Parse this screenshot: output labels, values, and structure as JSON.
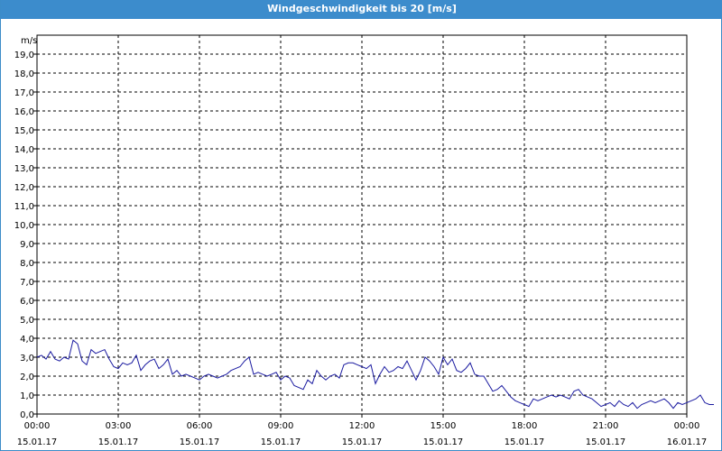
{
  "window": {
    "title": "Windgeschwindigkeit bis 20 [m/s]"
  },
  "chart_data": {
    "type": "line",
    "title": "",
    "ylabel": "m/s",
    "xlabel": "",
    "ylim": [
      0,
      20
    ],
    "xlim": [
      "15.01.17 00:00",
      "16.01.17 00:00"
    ],
    "grid": true,
    "y_ticks": [
      "0,0",
      "1,0",
      "2,0",
      "3,0",
      "4,0",
      "5,0",
      "6,0",
      "7,0",
      "8,0",
      "9,0",
      "10,0",
      "11,0",
      "12,0",
      "13,0",
      "14,0",
      "15,0",
      "16,0",
      "17,0",
      "18,0",
      "19,0"
    ],
    "x_ticks": [
      {
        "time": "00:00",
        "date": "15.01.17"
      },
      {
        "time": "03:00",
        "date": "15.01.17"
      },
      {
        "time": "06:00",
        "date": "15.01.17"
      },
      {
        "time": "09:00",
        "date": "15.01.17"
      },
      {
        "time": "12:00",
        "date": "15.01.17"
      },
      {
        "time": "15:00",
        "date": "15.01.17"
      },
      {
        "time": "18:00",
        "date": "15.01.17"
      },
      {
        "time": "21:00",
        "date": "15.01.17"
      },
      {
        "time": "00:00",
        "date": "16.01.17"
      }
    ],
    "series": [
      {
        "color": "#1a1aa0",
        "interval": "10min",
        "x_start": "15.01.17 00:00",
        "values": [
          3.0,
          3.1,
          2.9,
          3.3,
          2.9,
          2.8,
          3.0,
          2.9,
          3.9,
          3.7,
          2.8,
          2.6,
          3.4,
          3.2,
          3.3,
          3.4,
          2.9,
          2.5,
          2.4,
          2.7,
          2.6,
          2.7,
          3.1,
          2.3,
          2.6,
          2.8,
          2.9,
          2.4,
          2.6,
          2.9,
          2.1,
          2.3,
          2.0,
          2.1,
          2.0,
          1.9,
          1.8,
          2.0,
          2.1,
          2.0,
          1.9,
          2.0,
          2.1,
          2.3,
          2.4,
          2.5,
          2.8,
          3.0,
          2.1,
          2.2,
          2.1,
          2.0,
          2.1,
          2.2,
          1.8,
          2.0,
          1.9,
          1.5,
          1.4,
          1.3,
          1.8,
          1.6,
          2.3,
          2.0,
          1.8,
          2.0,
          2.1,
          1.9,
          2.6,
          2.7,
          2.7,
          2.6,
          2.5,
          2.4,
          2.6,
          1.6,
          2.1,
          2.5,
          2.2,
          2.3,
          2.5,
          2.4,
          2.8,
          2.3,
          1.8,
          2.3,
          3.0,
          2.8,
          2.5,
          2.1,
          3.0,
          2.6,
          2.9,
          2.3,
          2.2,
          2.4,
          2.7,
          2.1,
          2.0,
          2.0,
          1.6,
          1.2,
          1.3,
          1.5,
          1.2,
          0.9,
          0.7,
          0.6,
          0.5,
          0.4,
          0.8,
          0.7,
          0.8,
          0.9,
          1.0,
          0.9,
          1.0,
          0.9,
          0.8,
          1.2,
          1.3,
          1.0,
          0.9,
          0.8,
          0.6,
          0.4,
          0.5,
          0.6,
          0.4,
          0.7,
          0.5,
          0.4,
          0.6,
          0.3,
          0.5,
          0.6,
          0.7,
          0.6,
          0.7,
          0.8,
          0.6,
          0.3,
          0.6,
          0.5,
          0.6,
          0.7,
          0.8,
          1.0,
          0.6,
          0.5,
          0.5
        ]
      }
    ]
  }
}
